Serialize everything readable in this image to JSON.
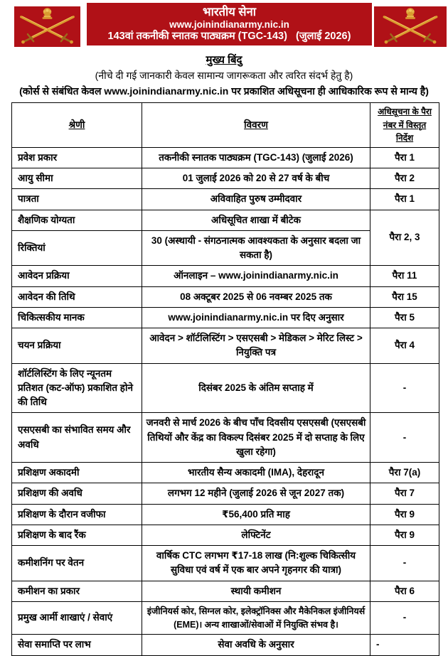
{
  "colors": {
    "banner_red": "#b01117",
    "emblem_gold": "#d99a2f",
    "emblem_gold_dark": "#9c6a1d",
    "text_on_red": "#ffffff"
  },
  "header": {
    "emblem": "indian-army-crossed-swords-lion-capital",
    "title": "भारतीय सेना",
    "website": "www.joinindianarmy.nic.in",
    "course_line": "143वां तकनीकी स्नातक पाठ्यक्रम (TGC-143)   (जुलाई 2026)"
  },
  "intro": {
    "heading": "मुख्य बिंदु",
    "line1": "(नीचे दी गई जानकारी केवल सामान्य जागरूकता और त्वरित संदर्भ हेतु है)",
    "line2": "(कोर्स से संबंधित केवल www.joinindianarmy.nic.in पर प्रकाशित अधिसूचना ही आधिकारिक रूप से मान्य है)"
  },
  "table": {
    "headers": [
      "श्रेणी",
      "विवरण",
      "अधिसूचना के पैरा नंबर में विस्तृत निर्देश"
    ],
    "rows": [
      {
        "category": "प्रवेश प्रकार",
        "details": "तकनीकी स्नातक पाठ्यक्रम (TGC-143) (जुलाई 2026)",
        "para": "पैरा 1"
      },
      {
        "category": "आयु सीमा",
        "details": "01 जुलाई 2026 को 20 से 27 वर्ष के बीच",
        "para": "पैरा 2"
      },
      {
        "category": "पात्रता",
        "details": "अविवाहित पुरुष उम्मीदवार",
        "para": "पैरा 1"
      },
      {
        "category": "शैक्षणिक योग्यता",
        "details": "अधिसूचित शाखा में बीटेक",
        "para": "पैरा 2, 3",
        "para_rowspan": 2
      },
      {
        "category": "रिक्तियां",
        "details": "30 (अस्थायी - संगठनात्मक आवश्यकता के अनुसार बदला जा सकता है)",
        "para": null
      },
      {
        "category": "आवेदन प्रक्रिया",
        "details": "ऑनलाइन – www.joinindianarmy.nic.in",
        "para": "पैरा 11"
      },
      {
        "category": "आवेदन की तिथि",
        "details": "08 अक्टूबर 2025 से 06 नवम्बर 2025 तक",
        "para": "पैरा 15"
      },
      {
        "category": "चिकित्सकीय मानक",
        "details": "www.joinindianarmy.nic.in पर दिए अनुसार",
        "para": "पैरा 5"
      },
      {
        "category": "चयन प्रक्रिया",
        "details": "आवेदन > शॉर्टलिस्टिंग > एसएसबी > मेडिकल > मेरिट लिस्ट > नियुक्ति पत्र",
        "para": "पैरा 4"
      },
      {
        "category": "शॉर्टलिस्टिंग के लिए न्यूनतम प्रतिशत (कट-ऑफ) प्रकाशित होने की तिथि",
        "details": "दिसंबर 2025 के अंतिम सप्ताह में",
        "para": "-"
      },
      {
        "category": "एसएसबी का संभावित समय और अवधि",
        "details": "जनवरी से मार्च 2026 के बीच पाँच दिवसीय एसएसबी (एसएसबी तिथियों और केंद्र का विकल्प दिसंबर 2025 में दो सप्ताह के लिए खुला रहेगा)",
        "para": "-"
      },
      {
        "category": "प्रशिक्षण अकादमी",
        "details": "भारतीय सैन्य अकादमी (IMA), देहरादून",
        "para": "पैरा 7(a)"
      },
      {
        "category": "प्रशिक्षण की अवधि",
        "details": "लगभग 12 महीने (जुलाई 2026 से जून 2027 तक)",
        "para": "पैरा 7"
      },
      {
        "category": "प्रशिक्षण के दौरान वजीफा",
        "details": "₹56,400 प्रति माह",
        "para": "पैरा 9"
      },
      {
        "category": "प्रशिक्षण के बाद रैंक",
        "details": "लेफ्टिनेंट",
        "para": "पैरा 9"
      },
      {
        "category": "कमीशनिंग पर वेतन",
        "details": "वार्षिक CTC लगभग ₹17-18 लाख (नि:शुल्क चिकित्सीय सुविधा एवं वर्ष में एक बार अपने गृहनगर की यात्रा)",
        "para": "-"
      },
      {
        "category": "कमीशन का प्रकार",
        "details": "स्थायी कमीशन",
        "para": "पैरा 6"
      },
      {
        "category": "प्रमुख आर्मी शाखाएं / सेवाएं",
        "details": "इंजीनियर्स कोर, सिग्नल कोर, इलेक्ट्रॉनिक्स और मैकेनिकल इंजीनियर्स (EME)। अन्य शाखाओं/सेवाओं में  नियुक्ति संभव है।",
        "para": "-",
        "details_small": true
      },
      {
        "category": "सेवा समाप्ति पर लाभ",
        "details": "सेवा अवधि के अनुसार",
        "para": "-",
        "para_align": "left"
      }
    ]
  }
}
